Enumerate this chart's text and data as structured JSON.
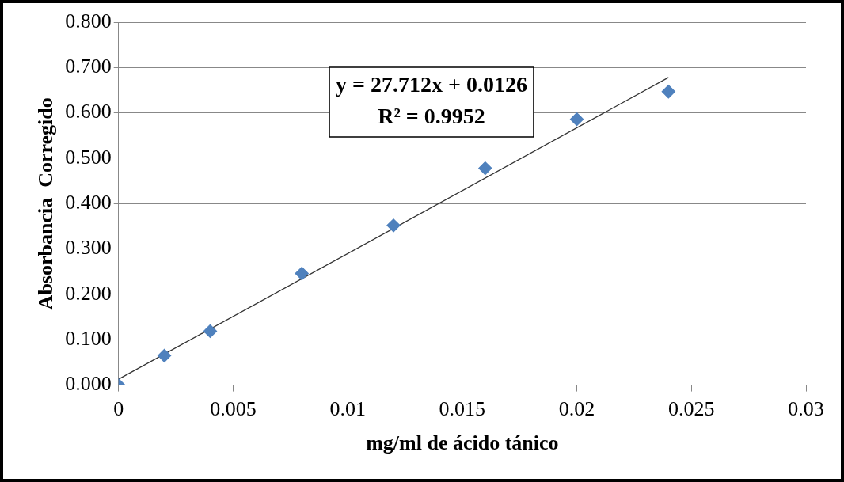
{
  "chart_data": {
    "type": "scatter",
    "xlabel": "mg/ml de ácido tánico",
    "ylabel": "Absorbancia  Corregido",
    "annotations": [
      "y = 27.712x + 0.0126",
      "R² = 0.9952"
    ],
    "xlim": [
      0,
      0.03
    ],
    "xticks": [
      0,
      0.005,
      0.01,
      0.015,
      0.02,
      0.025,
      0.03
    ],
    "ylim": [
      0,
      0.8
    ],
    "yticks": [
      {
        "value": 0,
        "label": "0.000"
      },
      {
        "value": 0.1,
        "label": "0.100"
      },
      {
        "value": 0.2,
        "label": "0.200"
      },
      {
        "value": 0.3,
        "label": "0.300"
      },
      {
        "value": 0.4,
        "label": "0.400"
      },
      {
        "value": 0.5,
        "label": "0.500"
      },
      {
        "value": 0.6,
        "label": "0.600"
      },
      {
        "value": 0.7,
        "label": "0.700"
      },
      {
        "value": 0.8,
        "label": "0.800"
      }
    ],
    "grid": "y",
    "legend": false,
    "marker": "diamond",
    "series": [
      {
        "color": "#4f81bd",
        "x": [
          0,
          0.002,
          0.004,
          0.008,
          0.012,
          0.016,
          0.02,
          0.024
        ],
        "values": [
          0,
          0.065,
          0.119,
          0.246,
          0.352,
          0.478,
          0.586,
          0.647
        ]
      },
      {
        "type": "line",
        "color": "#333333",
        "marker": "none",
        "line_style": "solid",
        "x": [
          0,
          0.024
        ],
        "values": [
          0.013,
          0.678
        ]
      }
    ]
  }
}
